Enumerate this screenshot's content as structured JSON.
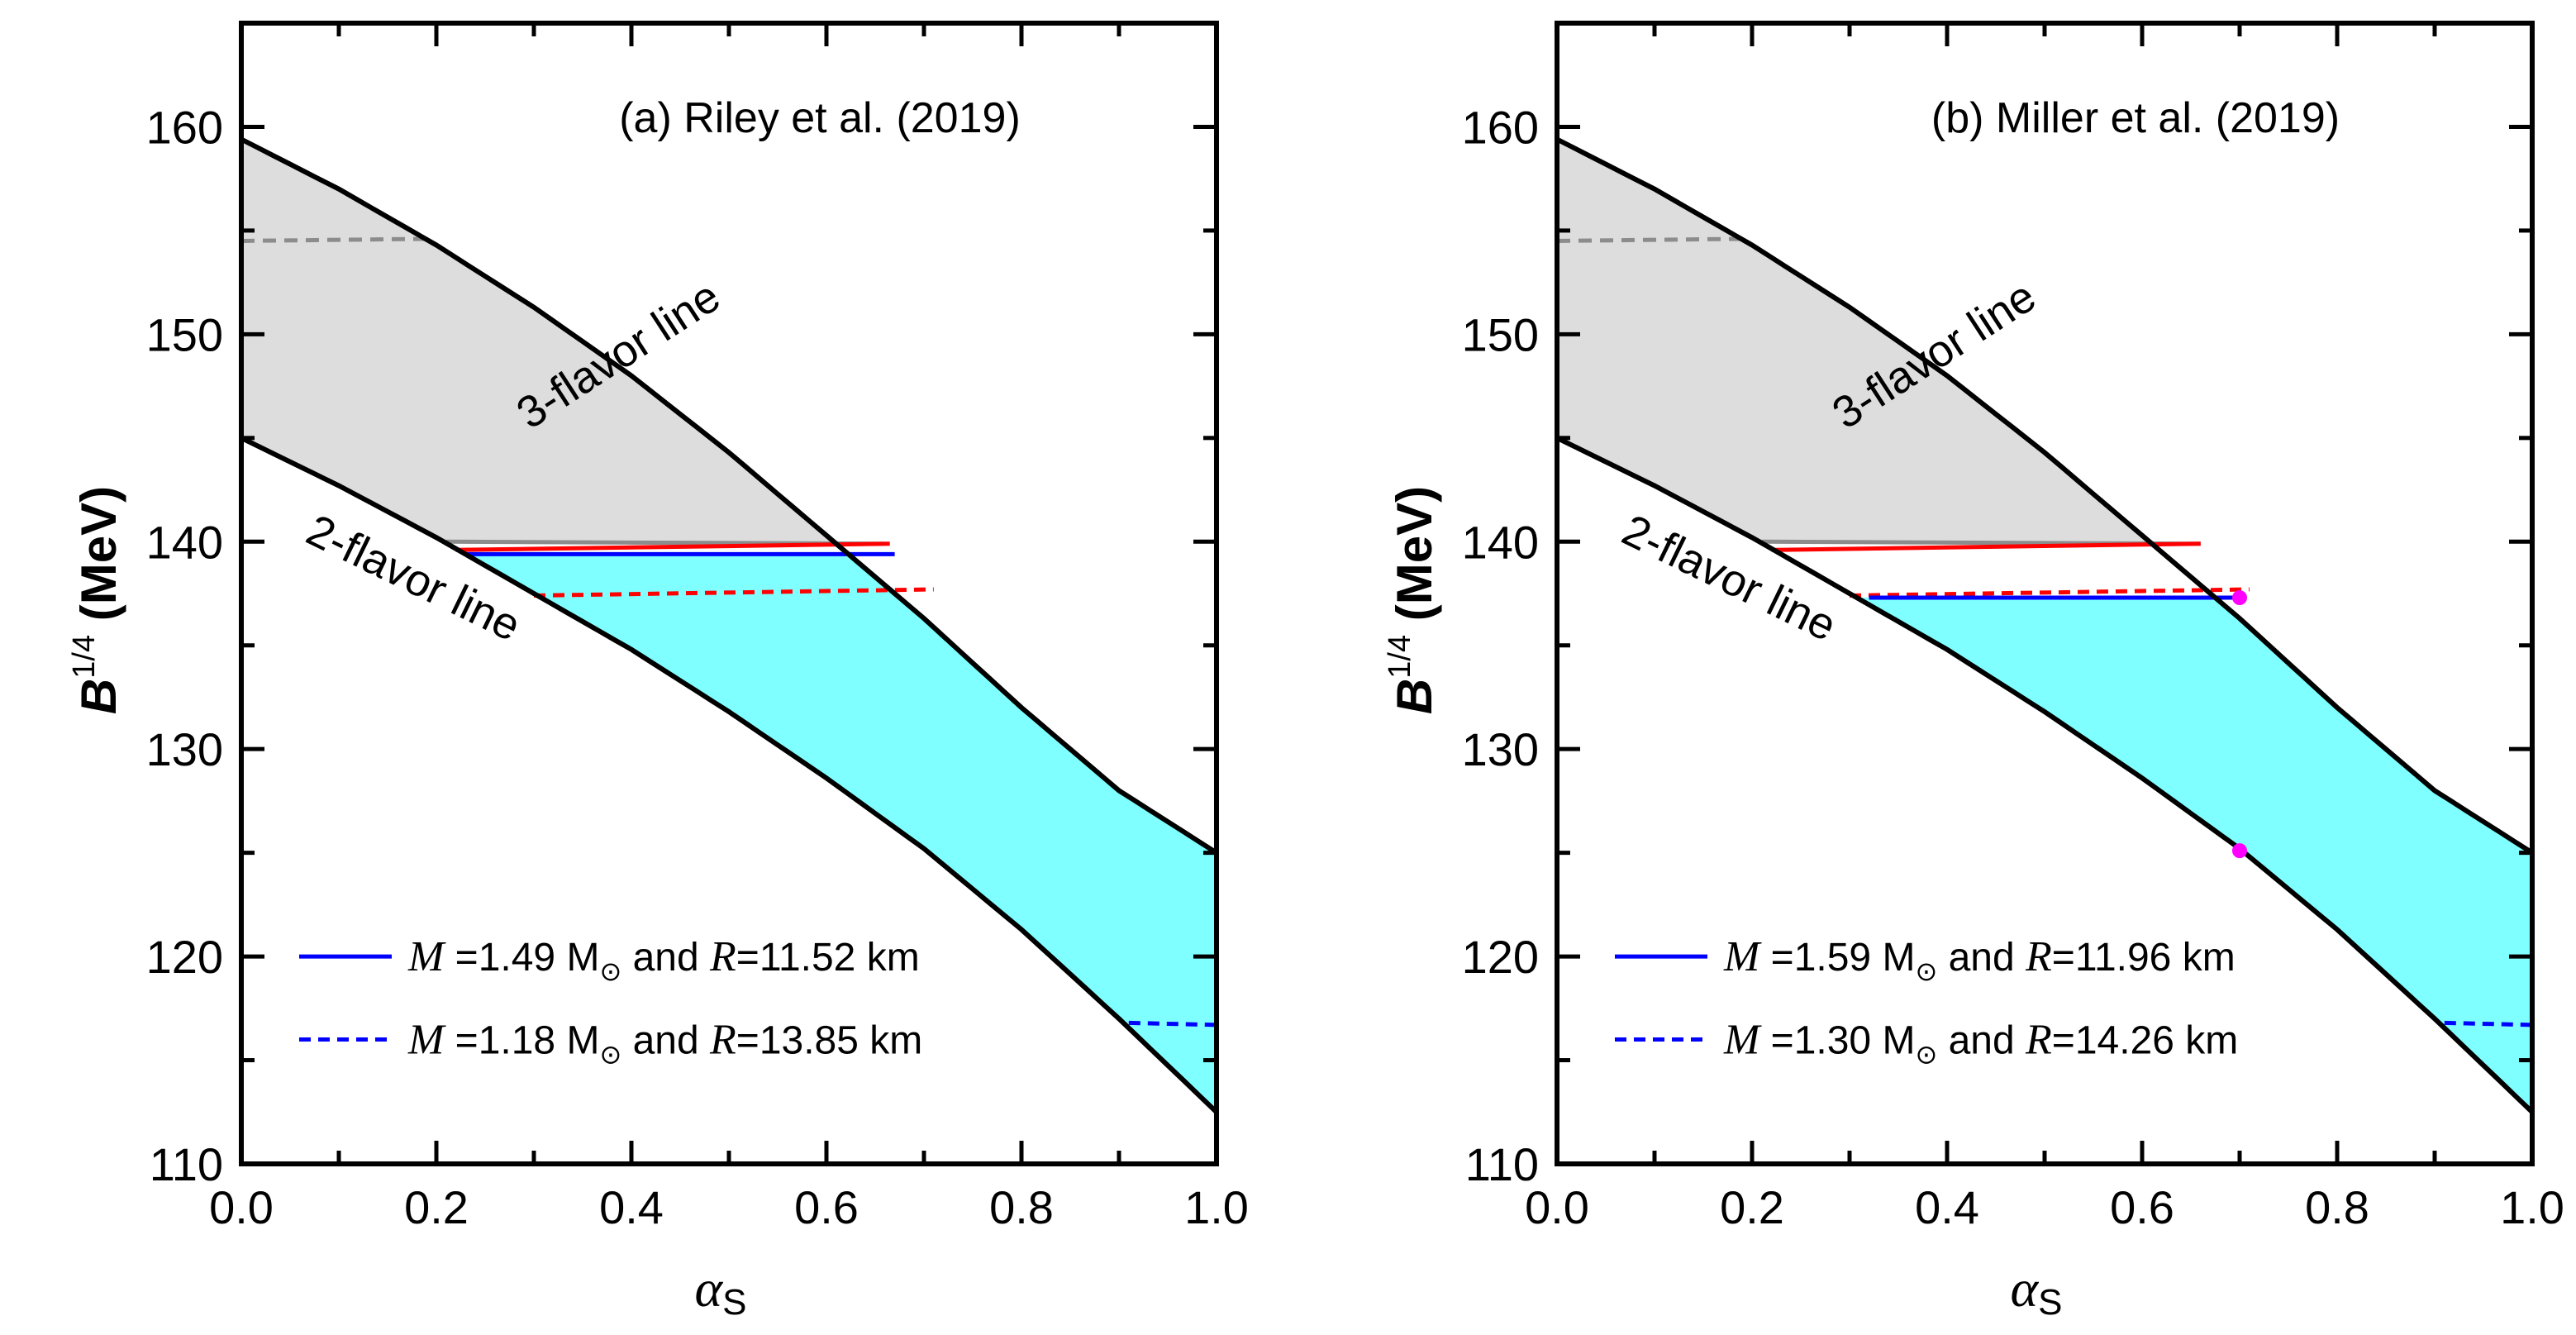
{
  "colors": {
    "gray_fill": "#dddddd",
    "cyan_fill": "#7fffff",
    "blue": "#0000ff",
    "red": "#ff0000",
    "gray_line": "#8c8c8c",
    "magenta": "#ff00ff",
    "black": "#000000"
  },
  "chart_data": [
    {
      "type": "line",
      "title": "(a) Riley et al. (2019)",
      "xlabel": "α_S",
      "ylabel": "B^{1/4} (MeV)",
      "xlim": [
        0.0,
        1.0
      ],
      "ylim": [
        110,
        165
      ],
      "x_ticks": [
        "0.0",
        "0.2",
        "0.4",
        "0.6",
        "0.8",
        "1.0"
      ],
      "y_ticks": [
        "110",
        "120",
        "130",
        "140",
        "150",
        "160"
      ],
      "flavor3_label": "3-flavor line",
      "flavor2_label": "2-flavor line",
      "three_flavor_line": {
        "x": [
          0.0,
          0.1,
          0.2,
          0.3,
          0.4,
          0.5,
          0.6,
          0.7,
          0.8,
          0.9,
          1.0
        ],
        "y": [
          159.4,
          157.0,
          154.3,
          151.3,
          148.0,
          144.3,
          140.3,
          136.3,
          132.0,
          128.0,
          125.0
        ]
      },
      "two_flavor_line": {
        "x": [
          0.0,
          0.1,
          0.2,
          0.3,
          0.4,
          0.5,
          0.6,
          0.7,
          0.8,
          0.9,
          1.0
        ],
        "y": [
          145.0,
          142.7,
          140.2,
          137.5,
          134.8,
          131.8,
          128.6,
          125.2,
          121.3,
          117.0,
          112.5
        ]
      },
      "gray_dashed": {
        "x": [
          0.0,
          0.19
        ],
        "y": [
          154.5,
          154.6
        ]
      },
      "gray_solid": {
        "x": [
          0.21,
          0.66
        ],
        "y": [
          140.0,
          139.9
        ]
      },
      "red_solid": {
        "x": [
          0.22,
          0.665
        ],
        "y": [
          139.6,
          139.9
        ]
      },
      "blue_solid": {
        "x": [
          0.23,
          0.67
        ],
        "y": [
          139.4,
          139.4
        ]
      },
      "red_dashed": {
        "x": [
          0.3,
          0.71
        ],
        "y": [
          137.4,
          137.7
        ]
      },
      "blue_dashed": {
        "x": [
          0.91,
          1.0
        ],
        "y": [
          116.8,
          116.7
        ]
      },
      "cyan_region": {
        "upper": "blue_solid",
        "lower": "2-flavor line",
        "right": "3-flavor line"
      },
      "gray_region": {
        "upper": "3-flavor line",
        "lower": "2-flavor line",
        "bottom": "gray_solid"
      },
      "markers": [],
      "legend": [
        {
          "style": "solid",
          "color": "#0000ff",
          "M_sym": "M",
          "M_value": " =1.49 M",
          "sun": "⊙",
          "mid": " and ",
          "R_sym": "R",
          "R_value": "=11.52 km"
        },
        {
          "style": "dashed",
          "color": "#0000ff",
          "M_sym": "M",
          "M_value": " =1.18 M",
          "sun": "⊙",
          "mid": " and ",
          "R_sym": "R",
          "R_value": "=13.85 km"
        }
      ]
    },
    {
      "type": "line",
      "title": "(b) Miller et al. (2019)",
      "xlabel": "α_S",
      "ylabel": "B^{1/4} (MeV)",
      "xlim": [
        0.0,
        1.0
      ],
      "ylim": [
        110,
        165
      ],
      "x_ticks": [
        "0.0",
        "0.2",
        "0.4",
        "0.6",
        "0.8",
        "1.0"
      ],
      "y_ticks": [
        "110",
        "120",
        "130",
        "140",
        "150",
        "160"
      ],
      "flavor3_label": "3-flavor line",
      "flavor2_label": "2-flavor line",
      "three_flavor_line": {
        "x": [
          0.0,
          0.1,
          0.2,
          0.3,
          0.4,
          0.5,
          0.6,
          0.7,
          0.8,
          0.9,
          1.0
        ],
        "y": [
          159.4,
          157.0,
          154.3,
          151.3,
          148.0,
          144.3,
          140.3,
          136.3,
          132.0,
          128.0,
          125.0
        ]
      },
      "two_flavor_line": {
        "x": [
          0.0,
          0.1,
          0.2,
          0.3,
          0.4,
          0.5,
          0.6,
          0.7,
          0.8,
          0.9,
          1.0
        ],
        "y": [
          145.0,
          142.7,
          140.2,
          137.5,
          134.8,
          131.8,
          128.6,
          125.2,
          121.3,
          117.0,
          112.5
        ]
      },
      "gray_dashed": {
        "x": [
          0.0,
          0.19
        ],
        "y": [
          154.5,
          154.6
        ]
      },
      "gray_solid": {
        "x": [
          0.21,
          0.66
        ],
        "y": [
          140.0,
          139.9
        ]
      },
      "red_solid": {
        "x": [
          0.22,
          0.66
        ],
        "y": [
          139.6,
          139.9
        ]
      },
      "blue_solid": {
        "x": [
          0.32,
          0.705
        ],
        "y": [
          137.3,
          137.3
        ]
      },
      "red_dashed": {
        "x": [
          0.3,
          0.71
        ],
        "y": [
          137.4,
          137.7
        ]
      },
      "blue_dashed": {
        "x": [
          0.91,
          1.0
        ],
        "y": [
          116.8,
          116.7
        ]
      },
      "cyan_region": {
        "upper": "blue_solid",
        "lower": "2-flavor line",
        "right": "3-flavor line"
      },
      "gray_region": {
        "upper": "3-flavor line",
        "lower": "2-flavor line",
        "bottom": "gray_solid"
      },
      "markers": [
        {
          "x": 0.7,
          "y": 137.3,
          "color": "#ff00ff"
        },
        {
          "x": 0.7,
          "y": 125.1,
          "color": "#ff00ff"
        }
      ],
      "legend": [
        {
          "style": "solid",
          "color": "#0000ff",
          "M_sym": "M",
          "M_value": " =1.59 M",
          "sun": "⊙",
          "mid": " and ",
          "R_sym": "R",
          "R_value": "=11.96 km"
        },
        {
          "style": "dashed",
          "color": "#0000ff",
          "M_sym": "M",
          "M_value": " =1.30 M",
          "sun": "⊙",
          "mid": " and ",
          "R_sym": "R",
          "R_value": "=14.26 km"
        }
      ]
    }
  ]
}
